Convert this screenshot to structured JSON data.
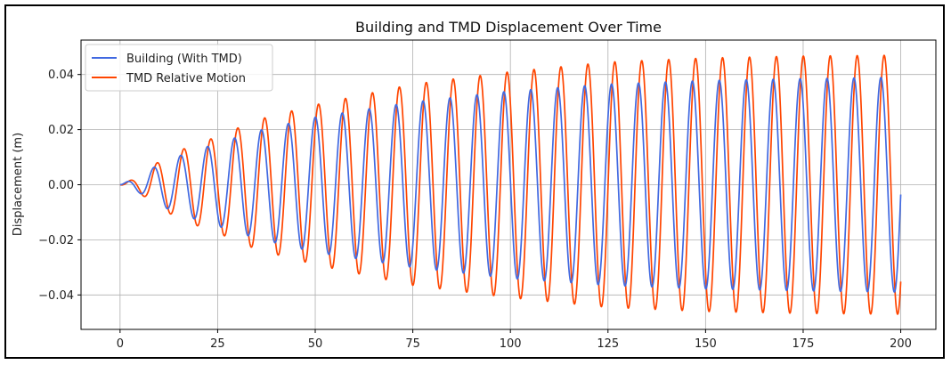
{
  "chart_data": {
    "type": "line",
    "title": "Building and TMD Displacement Over Time",
    "xlabel": "",
    "ylabel": "Displacement (m)",
    "xlim": [
      -10,
      209
    ],
    "ylim": [
      -0.0525,
      0.0525
    ],
    "grid": true,
    "legend_position": "top-left",
    "x_ticks": [
      0,
      25,
      50,
      75,
      100,
      125,
      150,
      175,
      200
    ],
    "x_tick_labels": [
      "0",
      "25",
      "50",
      "75",
      "100",
      "125",
      "150",
      "175",
      "200"
    ],
    "y_ticks": [
      0.04,
      0.02,
      0.0,
      -0.02,
      -0.04
    ],
    "y_tick_labels": [
      "0.04",
      "0.02",
      "0.00",
      "−0.02",
      "−0.04"
    ],
    "period": 6.9,
    "series": [
      {
        "name": "Building (With TMD)",
        "color": "#4169e1",
        "phase_lag_cycles": 0.0,
        "envelope_t": [
          0,
          5,
          10,
          17,
          25,
          35,
          50,
          75,
          100,
          125,
          150,
          175,
          200
        ],
        "envelope_amp": [
          0.0,
          0.003,
          0.0075,
          0.0115,
          0.015,
          0.0195,
          0.0245,
          0.03,
          0.034,
          0.0365,
          0.0378,
          0.0385,
          0.039
        ]
      },
      {
        "name": "TMD Relative Motion",
        "color": "#ff4500",
        "phase_lag_cycles": 0.12,
        "envelope_t": [
          0,
          5,
          10,
          17,
          25,
          35,
          50,
          75,
          100,
          125,
          150,
          175,
          200
        ],
        "envelope_amp": [
          0.0,
          0.003,
          0.0085,
          0.0135,
          0.0175,
          0.0235,
          0.029,
          0.0365,
          0.041,
          0.0445,
          0.046,
          0.0467,
          0.047
        ]
      }
    ]
  }
}
